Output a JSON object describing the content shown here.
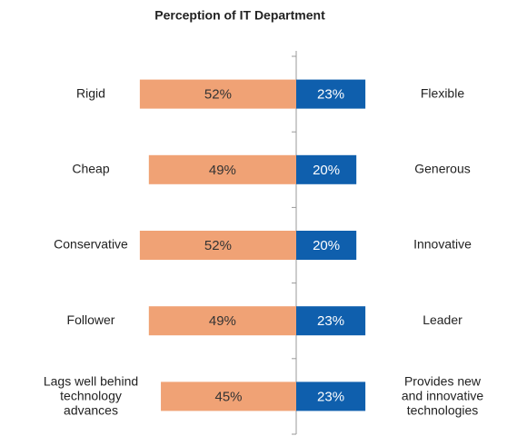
{
  "chart_data": {
    "type": "diverging-bar",
    "title": "Perception of IT Department",
    "categories": [
      "Rigid",
      "Cheap",
      "Conservative",
      "Follower",
      "Lags well behind\ntechnology\nadvances"
    ],
    "opposite_categories": [
      "Flexible",
      "Generous",
      "Innovative",
      "Leader",
      "Provides new\nand innovative\ntechnologies"
    ],
    "series": [
      {
        "color": "#f0a275",
        "values": [
          52,
          49,
          52,
          49,
          45
        ],
        "value_labels": [
          "52%",
          "49%",
          "52%",
          "49%",
          "45%"
        ]
      },
      {
        "color": "#0f5fad",
        "values": [
          23,
          20,
          20,
          23,
          23
        ],
        "value_labels": [
          "23%",
          "20%",
          "20%",
          "23%",
          "23%"
        ]
      }
    ]
  }
}
